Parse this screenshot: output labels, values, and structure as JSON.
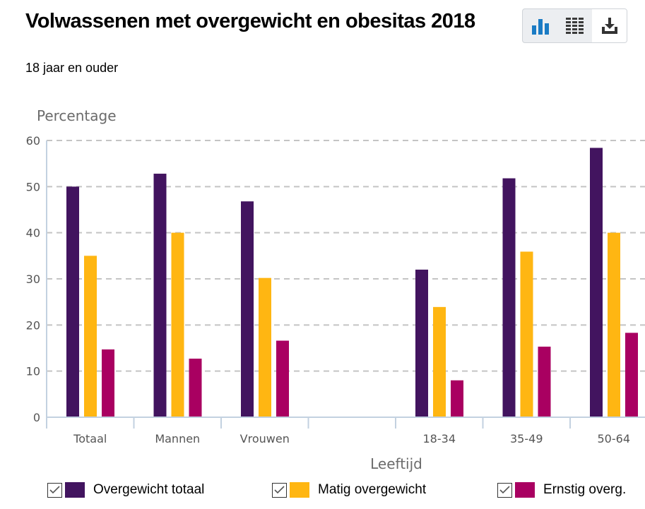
{
  "header": {
    "title": "Volwassenen met overgewicht en obesitas 2018",
    "subtitle": "18 jaar en ouder"
  },
  "toolbar": {
    "buttons": [
      {
        "name": "chart-view",
        "icon": "bar-chart-icon",
        "active": true
      },
      {
        "name": "table-view",
        "icon": "table-icon",
        "active": false
      },
      {
        "name": "download",
        "icon": "download-icon",
        "active": false
      }
    ],
    "active_color": "#1a7bc4"
  },
  "chart_data": {
    "type": "bar",
    "title": "Volwassenen met overgewicht en obesitas 2018",
    "subtitle": "18 jaar en ouder",
    "xlabel": "Leeftijd",
    "ylabel": "Percentage",
    "ylim": [
      0,
      60
    ],
    "yticks": [
      "0",
      "10",
      "20",
      "30",
      "40",
      "50",
      "60"
    ],
    "grid": true,
    "legend_position": "bottom",
    "categories": [
      "Totaal",
      "Mannen",
      "Vrouwen",
      "",
      "18-34",
      "35-49",
      "50-64"
    ],
    "series": [
      {
        "name": "Overgewicht totaal",
        "color": "#42145f",
        "checked": true,
        "values": [
          50.0,
          52.8,
          46.8,
          null,
          32.0,
          51.8,
          58.4
        ]
      },
      {
        "name": "Matig overgewicht",
        "color": "#ffb612",
        "checked": true,
        "values": [
          35.0,
          40.0,
          30.2,
          null,
          23.9,
          35.9,
          40.0
        ]
      },
      {
        "name": "Ernstig overg.",
        "color": "#a90061",
        "checked": true,
        "values": [
          14.7,
          12.7,
          16.6,
          null,
          8.0,
          15.3,
          18.3
        ]
      }
    ]
  }
}
